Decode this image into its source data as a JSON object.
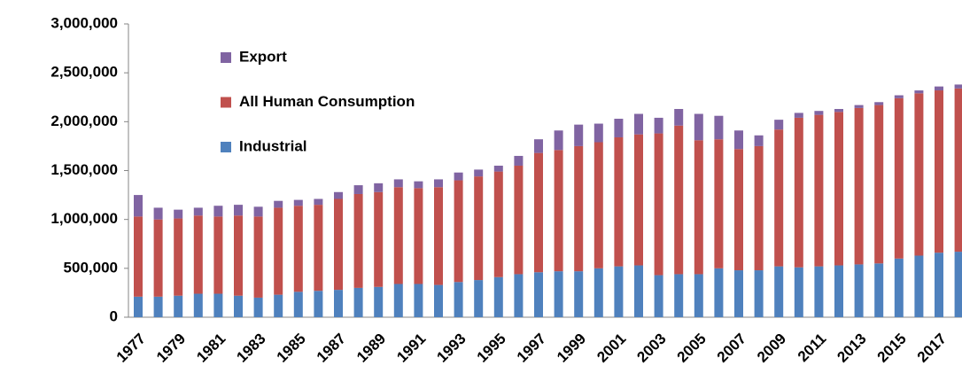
{
  "chart_data": {
    "type": "stacked-bar",
    "categories": [
      "1977",
      null,
      "1979",
      null,
      "1981",
      null,
      "1983",
      null,
      "1985",
      null,
      "1987",
      null,
      "1989",
      null,
      "1991",
      null,
      "1993",
      null,
      "1995",
      null,
      "1997",
      null,
      "1999",
      null,
      "2001",
      null,
      "2003",
      null,
      "2005",
      null,
      "2007",
      null,
      "2009",
      null,
      "2011",
      null,
      "2013",
      null,
      "2015",
      null,
      "2017",
      null
    ],
    "series": [
      {
        "name": "Industrial",
        "color": "#4f81bd",
        "values": [
          210000,
          210000,
          220000,
          240000,
          240000,
          220000,
          200000,
          230000,
          260000,
          270000,
          280000,
          300000,
          310000,
          340000,
          340000,
          330000,
          360000,
          380000,
          410000,
          440000,
          460000,
          470000,
          470000,
          500000,
          520000,
          530000,
          430000,
          440000,
          440000,
          500000,
          480000,
          480000,
          520000,
          510000,
          520000,
          530000,
          540000,
          550000,
          600000,
          630000,
          660000,
          670000
        ]
      },
      {
        "name": "All Human Consumption",
        "color": "#c0504d",
        "values": [
          820000,
          790000,
          790000,
          800000,
          790000,
          820000,
          830000,
          890000,
          880000,
          880000,
          930000,
          960000,
          970000,
          990000,
          980000,
          1000000,
          1040000,
          1060000,
          1080000,
          1110000,
          1220000,
          1240000,
          1280000,
          1290000,
          1320000,
          1340000,
          1450000,
          1520000,
          1370000,
          1320000,
          1240000,
          1270000,
          1400000,
          1530000,
          1550000,
          1570000,
          1600000,
          1620000,
          1640000,
          1660000,
          1660000,
          1670000
        ]
      },
      {
        "name": "Export",
        "color": "#8064a2",
        "values": [
          220000,
          120000,
          90000,
          80000,
          110000,
          110000,
          100000,
          70000,
          60000,
          60000,
          70000,
          90000,
          90000,
          80000,
          70000,
          80000,
          80000,
          70000,
          60000,
          100000,
          140000,
          200000,
          220000,
          190000,
          190000,
          210000,
          160000,
          170000,
          270000,
          240000,
          190000,
          110000,
          100000,
          50000,
          40000,
          30000,
          30000,
          30000,
          30000,
          30000,
          40000,
          40000
        ]
      }
    ],
    "ylim": [
      0,
      3000000
    ],
    "yticks": [
      0,
      {
        "value": 500000,
        "label": "500,000"
      },
      {
        "value": 1000000,
        "label": "1,000,000"
      },
      {
        "value": 1500000,
        "label": "1,500,000"
      },
      {
        "value": 2000000,
        "label": "2,000,000"
      },
      {
        "value": 2500000,
        "label": "2,500,000"
      },
      {
        "value": 3000000,
        "label": "3,000,000"
      }
    ],
    "legend": "upper-left"
  }
}
